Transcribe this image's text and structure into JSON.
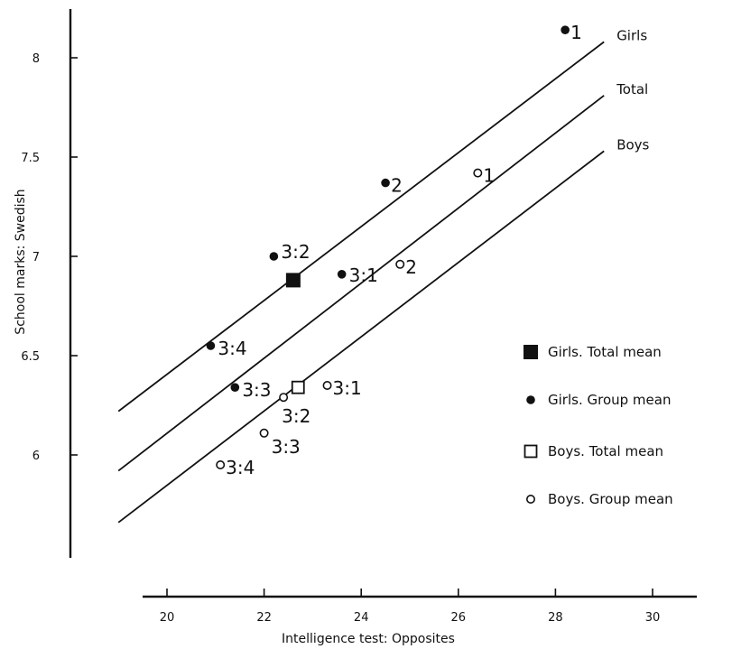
{
  "chart_data": {
    "type": "scatter",
    "xlabel": "Intelligence test: Opposites",
    "ylabel": "School marks: Swedish",
    "xlim": [
      19,
      31
    ],
    "ylim": [
      5.3,
      8.25
    ],
    "x_ticks": [
      20,
      22,
      24,
      26,
      28,
      30
    ],
    "x_tick_labels": [
      "20",
      "22",
      "24",
      "26",
      "28",
      "30"
    ],
    "y_ticks": [
      6,
      6.5,
      7,
      7.5,
      8
    ],
    "y_tick_labels": [
      "6",
      "6.5",
      "7",
      "7.5",
      "8"
    ],
    "grid": false,
    "legend_position": "right",
    "lines": [
      {
        "label": "Girls",
        "x": [
          19,
          29
        ],
        "y": [
          6.22,
          8.08
        ]
      },
      {
        "label": "Total",
        "x": [
          19,
          29
        ],
        "y": [
          5.92,
          7.81
        ]
      },
      {
        "label": "Boys",
        "x": [
          19,
          29
        ],
        "y": [
          5.66,
          7.53
        ]
      }
    ],
    "series": [
      {
        "name": "Girls. Total mean",
        "marker": "filled-square",
        "points": [
          {
            "x": 22.6,
            "y": 6.88,
            "label": ""
          }
        ]
      },
      {
        "name": "Girls. Group mean",
        "marker": "filled-circle",
        "points": [
          {
            "x": 28.2,
            "y": 8.14,
            "label": "1"
          },
          {
            "x": 24.5,
            "y": 7.37,
            "label": "2"
          },
          {
            "x": 22.2,
            "y": 7.0,
            "label": "3:2"
          },
          {
            "x": 23.6,
            "y": 6.91,
            "label": "3:1"
          },
          {
            "x": 20.9,
            "y": 6.55,
            "label": "3:4"
          },
          {
            "x": 21.4,
            "y": 6.34,
            "label": "3:3"
          }
        ]
      },
      {
        "name": "Boys. Total mean",
        "marker": "open-square",
        "points": [
          {
            "x": 22.7,
            "y": 6.34,
            "label": ""
          }
        ]
      },
      {
        "name": "Boys. Group mean",
        "marker": "open-circle",
        "points": [
          {
            "x": 26.4,
            "y": 7.42,
            "label": "1"
          },
          {
            "x": 24.8,
            "y": 6.96,
            "label": "2"
          },
          {
            "x": 23.3,
            "y": 6.35,
            "label": "3:1"
          },
          {
            "x": 22.4,
            "y": 6.29,
            "label": "3:2"
          },
          {
            "x": 22.0,
            "y": 6.11,
            "label": "3:3"
          },
          {
            "x": 21.1,
            "y": 5.95,
            "label": "3:4"
          }
        ]
      }
    ]
  }
}
